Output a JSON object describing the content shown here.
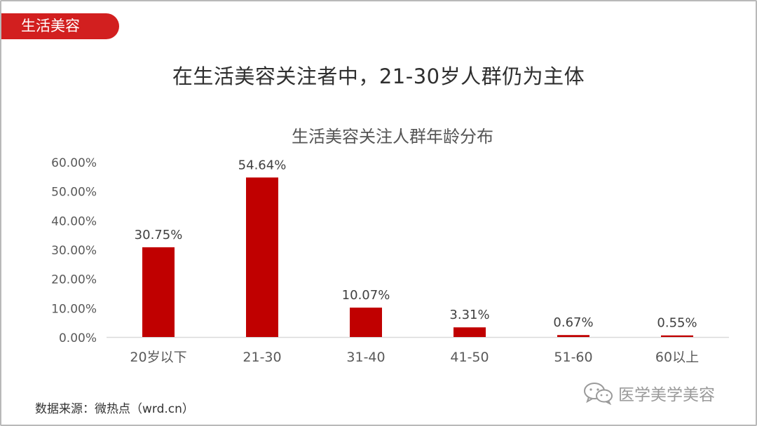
{
  "section_tag": "生活美容",
  "main_title": "在生活美容关注者中，21-30岁人群仍为主体",
  "source": "数据来源：微热点（wrd.cn）",
  "watermark": {
    "text": "医学美学美容",
    "icon": "wechat-icon"
  },
  "colors": {
    "accent": "#d21f1f",
    "bar": "#c00000"
  },
  "chart_data": {
    "type": "bar",
    "title": "生活美容关注人群年龄分布",
    "xlabel": "",
    "ylabel": "",
    "categories": [
      "20岁以下",
      "21-30",
      "31-40",
      "41-50",
      "51-60",
      "60以上"
    ],
    "values": [
      30.75,
      54.64,
      10.07,
      3.31,
      0.67,
      0.55
    ],
    "value_labels": [
      "30.75%",
      "54.64%",
      "10.07%",
      "3.31%",
      "0.67%",
      "0.55%"
    ],
    "ylim": [
      0,
      60
    ],
    "yticks": [
      "0.00%",
      "10.00%",
      "20.00%",
      "30.00%",
      "40.00%",
      "50.00%",
      "60.00%"
    ],
    "grid": false,
    "legend": "none"
  }
}
